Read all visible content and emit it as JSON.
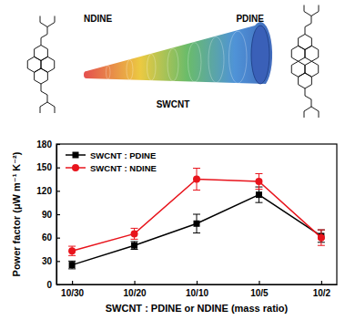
{
  "chart_data": {
    "type": "line",
    "annotations": [
      "NDINE",
      "PDINE",
      "SWCNT"
    ],
    "x_label": "SWCNT : PDINE or NDINE (mass ratio)",
    "y_label": "Power factor (μW m⁻¹ K⁻²)",
    "categories": [
      "10/30",
      "10/20",
      "10/10",
      "10/5",
      "10/2"
    ],
    "series": [
      {
        "name": "SWCNT : PDINE",
        "color": "#000000",
        "marker": "square",
        "values": [
          25,
          50,
          78,
          115,
          62
        ],
        "errors": [
          5,
          5,
          12,
          10,
          8
        ]
      },
      {
        "name": "SWCNT : NDINE",
        "color": "#e8141c",
        "marker": "circle",
        "values": [
          43,
          65,
          135,
          132,
          60
        ],
        "errors": [
          6,
          7,
          14,
          10,
          10
        ]
      }
    ],
    "ylim": [
      0,
      180
    ],
    "yticks": [
      0,
      30,
      60,
      90,
      120,
      150,
      180
    ],
    "legend": "upper left"
  }
}
